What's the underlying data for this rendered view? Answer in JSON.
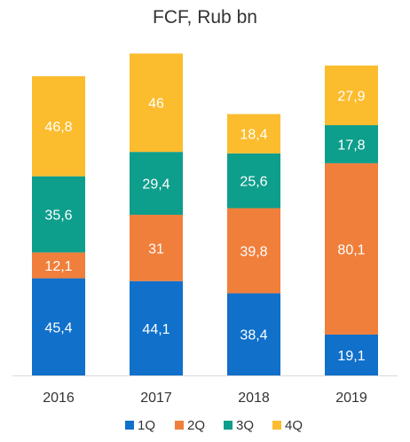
{
  "chart_data": {
    "type": "bar",
    "stacked": true,
    "title": "FCF, Rub bn",
    "categories": [
      "2016",
      "2017",
      "2018",
      "2019"
    ],
    "series": [
      {
        "name": "1Q",
        "color": "#1070CA",
        "values": [
          45.4,
          44.1,
          38.4,
          19.1
        ],
        "labels": [
          "45,4",
          "44,1",
          "38,4",
          "19,1"
        ]
      },
      {
        "name": "2Q",
        "color": "#F07F3C",
        "values": [
          12.1,
          31,
          39.8,
          80.1
        ],
        "labels": [
          "12,1",
          "31",
          "39,8",
          "80,1"
        ]
      },
      {
        "name": "3Q",
        "color": "#0E9E8C",
        "values": [
          35.6,
          29.4,
          25.6,
          17.8
        ],
        "labels": [
          "35,6",
          "29,4",
          "25,6",
          "17,8"
        ]
      },
      {
        "name": "4Q",
        "color": "#FBBC2E",
        "values": [
          46.8,
          46,
          18.4,
          27.9
        ],
        "labels": [
          "46,8",
          "46",
          "18,4",
          "27,9"
        ]
      }
    ],
    "legend_position": "bottom",
    "grid": false
  }
}
